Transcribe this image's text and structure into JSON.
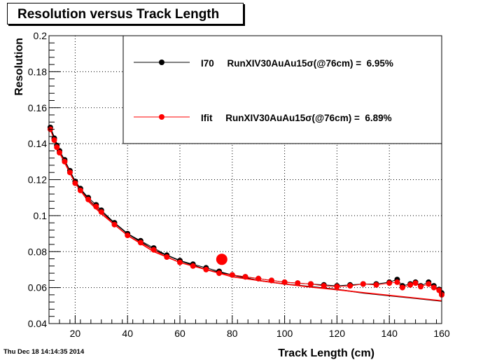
{
  "chart_data": {
    "type": "scatter",
    "title": "Resolution versus Track Length",
    "xlabel": "Track Length (cm)",
    "ylabel": "Resolution",
    "xlim": [
      10,
      160
    ],
    "ylim": [
      0.04,
      0.2
    ],
    "x_ticks": [
      20,
      40,
      60,
      80,
      100,
      120,
      140,
      160
    ],
    "x_tick_labels": [
      "20",
      "40",
      "60",
      "80",
      "100",
      "120",
      "140",
      "160"
    ],
    "y_ticks": [
      0.04,
      0.06,
      0.08,
      0.1,
      0.12,
      0.14,
      0.16,
      0.18,
      0.2
    ],
    "y_tick_labels": [
      "0.04",
      "0.06",
      "0.08",
      "0.1",
      "0.12",
      "0.14",
      "0.16",
      "0.18",
      "0.2"
    ],
    "grid": true,
    "legend_position": "top-right",
    "series": [
      {
        "name": "I70",
        "legend_text": "I70     RunXIV30AuAu15σ(@76cm) =  6.95%",
        "color": "#000000",
        "x": [
          10.5,
          12,
          13,
          14,
          16,
          18,
          20,
          22,
          25,
          28,
          30,
          35,
          40,
          45,
          50,
          55,
          60,
          65,
          70,
          75,
          80,
          85,
          90,
          95,
          100,
          105,
          110,
          115,
          120,
          125,
          130,
          135,
          140,
          143,
          145,
          148,
          150,
          152,
          155,
          157,
          159,
          160
        ],
        "y": [
          0.149,
          0.143,
          0.139,
          0.136,
          0.131,
          0.125,
          0.119,
          0.115,
          0.11,
          0.106,
          0.103,
          0.096,
          0.09,
          0.086,
          0.082,
          0.078,
          0.075,
          0.073,
          0.071,
          0.069,
          0.067,
          0.066,
          0.065,
          0.064,
          0.063,
          0.0625,
          0.062,
          0.0615,
          0.061,
          0.0615,
          0.062,
          0.062,
          0.063,
          0.0645,
          0.061,
          0.062,
          0.063,
          0.061,
          0.063,
          0.061,
          0.059,
          0.057
        ],
        "fit": [
          [
            10.5,
            0.149
          ],
          [
            14,
            0.136
          ],
          [
            20,
            0.119
          ],
          [
            25,
            0.109
          ],
          [
            30,
            0.102
          ],
          [
            40,
            0.09
          ],
          [
            50,
            0.081
          ],
          [
            60,
            0.075
          ],
          [
            70,
            0.07
          ],
          [
            80,
            0.067
          ],
          [
            90,
            0.064
          ],
          [
            100,
            0.062
          ],
          [
            110,
            0.0605
          ],
          [
            120,
            0.059
          ],
          [
            130,
            0.057
          ],
          [
            140,
            0.0555
          ],
          [
            150,
            0.054
          ],
          [
            160,
            0.0525
          ]
        ]
      },
      {
        "name": "Ifit",
        "legend_text": "Ifit     RunXIV30AuAu15σ(@76cm) =  6.89%",
        "color": "#ff0000",
        "x": [
          10.5,
          12,
          13,
          14,
          16,
          18,
          20,
          22,
          25,
          28,
          30,
          35,
          40,
          45,
          50,
          55,
          60,
          65,
          70,
          75,
          80,
          85,
          90,
          95,
          100,
          105,
          110,
          115,
          120,
          125,
          130,
          135,
          140,
          143,
          145,
          148,
          150,
          152,
          155,
          157,
          159,
          160
        ],
        "y": [
          0.148,
          0.142,
          0.138,
          0.135,
          0.13,
          0.124,
          0.118,
          0.114,
          0.109,
          0.105,
          0.102,
          0.095,
          0.089,
          0.085,
          0.081,
          0.077,
          0.074,
          0.072,
          0.07,
          0.068,
          0.067,
          0.066,
          0.065,
          0.064,
          0.063,
          0.0625,
          0.062,
          0.061,
          0.0605,
          0.061,
          0.062,
          0.0615,
          0.0625,
          0.063,
          0.06,
          0.0615,
          0.0625,
          0.0605,
          0.062,
          0.06,
          0.0585,
          0.056
        ],
        "fit": [
          [
            10.5,
            0.148
          ],
          [
            14,
            0.135
          ],
          [
            20,
            0.118
          ],
          [
            25,
            0.108
          ],
          [
            30,
            0.101
          ],
          [
            40,
            0.089
          ],
          [
            50,
            0.08
          ],
          [
            60,
            0.074
          ],
          [
            70,
            0.07
          ],
          [
            80,
            0.066
          ],
          [
            90,
            0.064
          ],
          [
            100,
            0.062
          ],
          [
            110,
            0.0603
          ],
          [
            120,
            0.0588
          ],
          [
            130,
            0.0572
          ],
          [
            140,
            0.0557
          ],
          [
            150,
            0.0542
          ],
          [
            160,
            0.0527
          ]
        ]
      }
    ],
    "highlight_point": {
      "x": 76,
      "y": 0.0757,
      "color": "#ff0000"
    },
    "footer": "Thu Dec 18 14:14:35 2014"
  }
}
